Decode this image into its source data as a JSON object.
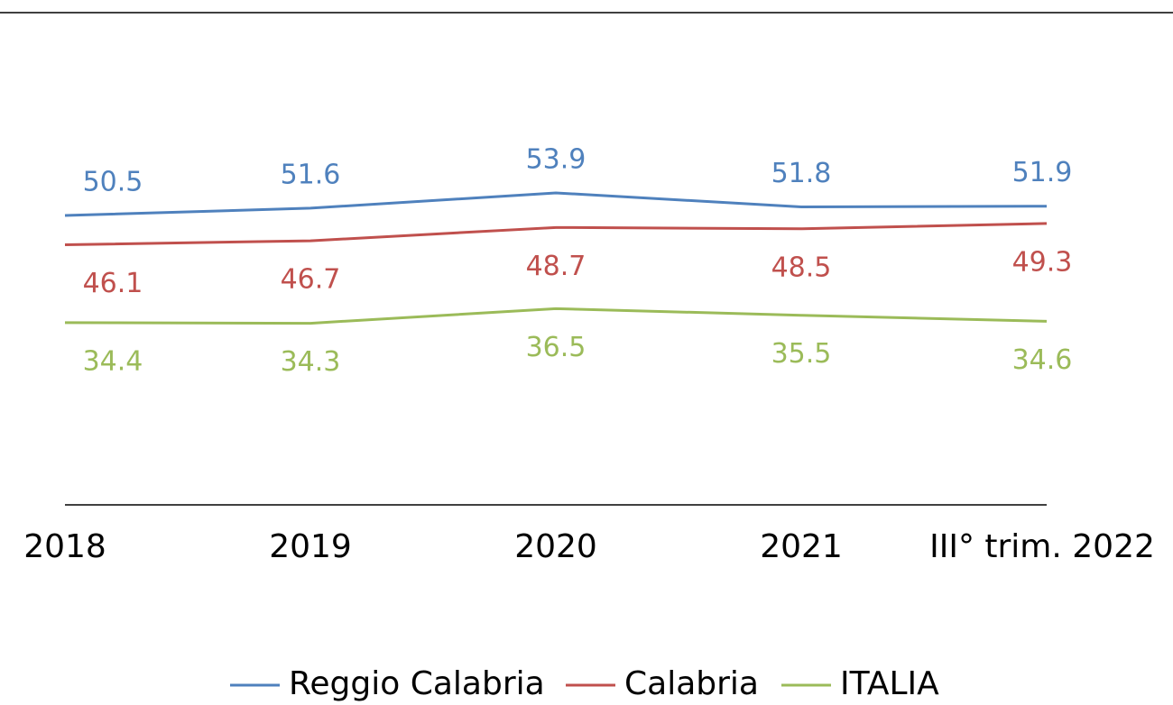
{
  "chart_data": {
    "type": "line",
    "categories": [
      "2018",
      "2019",
      "2020",
      "2021",
      "III° trim. 2022"
    ],
    "series": [
      {
        "name": "Reggio Calabria",
        "color": "#4f81bd",
        "values": [
          50.5,
          51.6,
          53.9,
          51.8,
          51.9
        ]
      },
      {
        "name": "Calabria",
        "color": "#c0504d",
        "values": [
          46.1,
          46.7,
          48.7,
          48.5,
          49.3
        ]
      },
      {
        "name": "ITALIA",
        "color": "#9bbb59",
        "values": [
          34.4,
          34.3,
          36.5,
          35.5,
          34.6
        ]
      }
    ],
    "ylim": [
      7,
      81
    ],
    "legend": "bottom"
  }
}
